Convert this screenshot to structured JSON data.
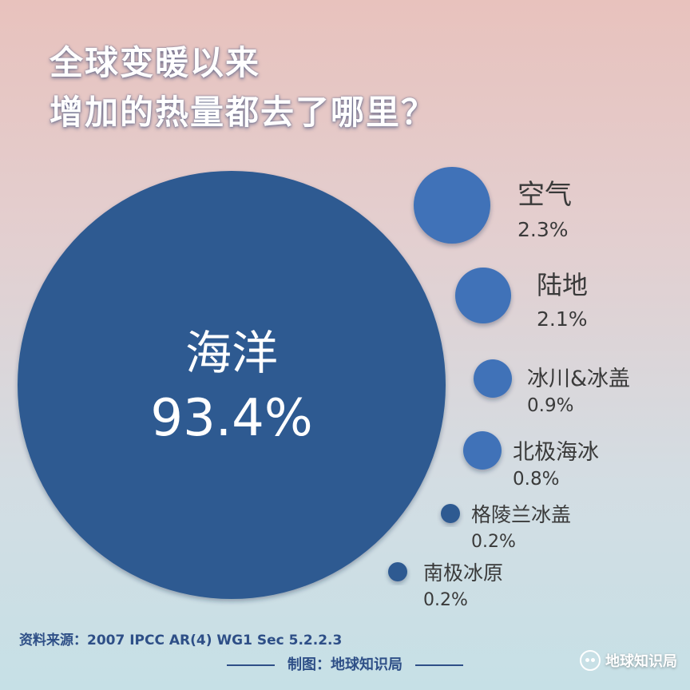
{
  "title": {
    "line1": "全球变暖以来",
    "line2": "增加的热量都去了哪里？"
  },
  "colors": {
    "ocean": "#2e5a91",
    "small_bubble": "#3f72b8",
    "label": "#3a3a3a"
  },
  "chart_data": {
    "type": "bubble",
    "title": "全球变暖以来 增加的热量都去了哪里？",
    "items": [
      {
        "label": "海洋",
        "value": 93.4,
        "value_text": "93.4%"
      },
      {
        "label": "空气",
        "value": 2.3,
        "value_text": "2.3%"
      },
      {
        "label": "陆地",
        "value": 2.1,
        "value_text": "2.1%"
      },
      {
        "label": "冰川&冰盖",
        "value": 0.9,
        "value_text": "0.9%"
      },
      {
        "label": "北极海冰",
        "value": 0.8,
        "value_text": "0.8%"
      },
      {
        "label": "格陵兰冰盖",
        "value": 0.2,
        "value_text": "0.2%"
      },
      {
        "label": "南极冰原",
        "value": 0.2,
        "value_text": "0.2%"
      }
    ]
  },
  "footer": {
    "source": "资料来源：2007 IPCC AR(4) WG1 Sec 5.2.2.3",
    "credit": "制图：地球知识局",
    "brand": "地球知识局"
  }
}
